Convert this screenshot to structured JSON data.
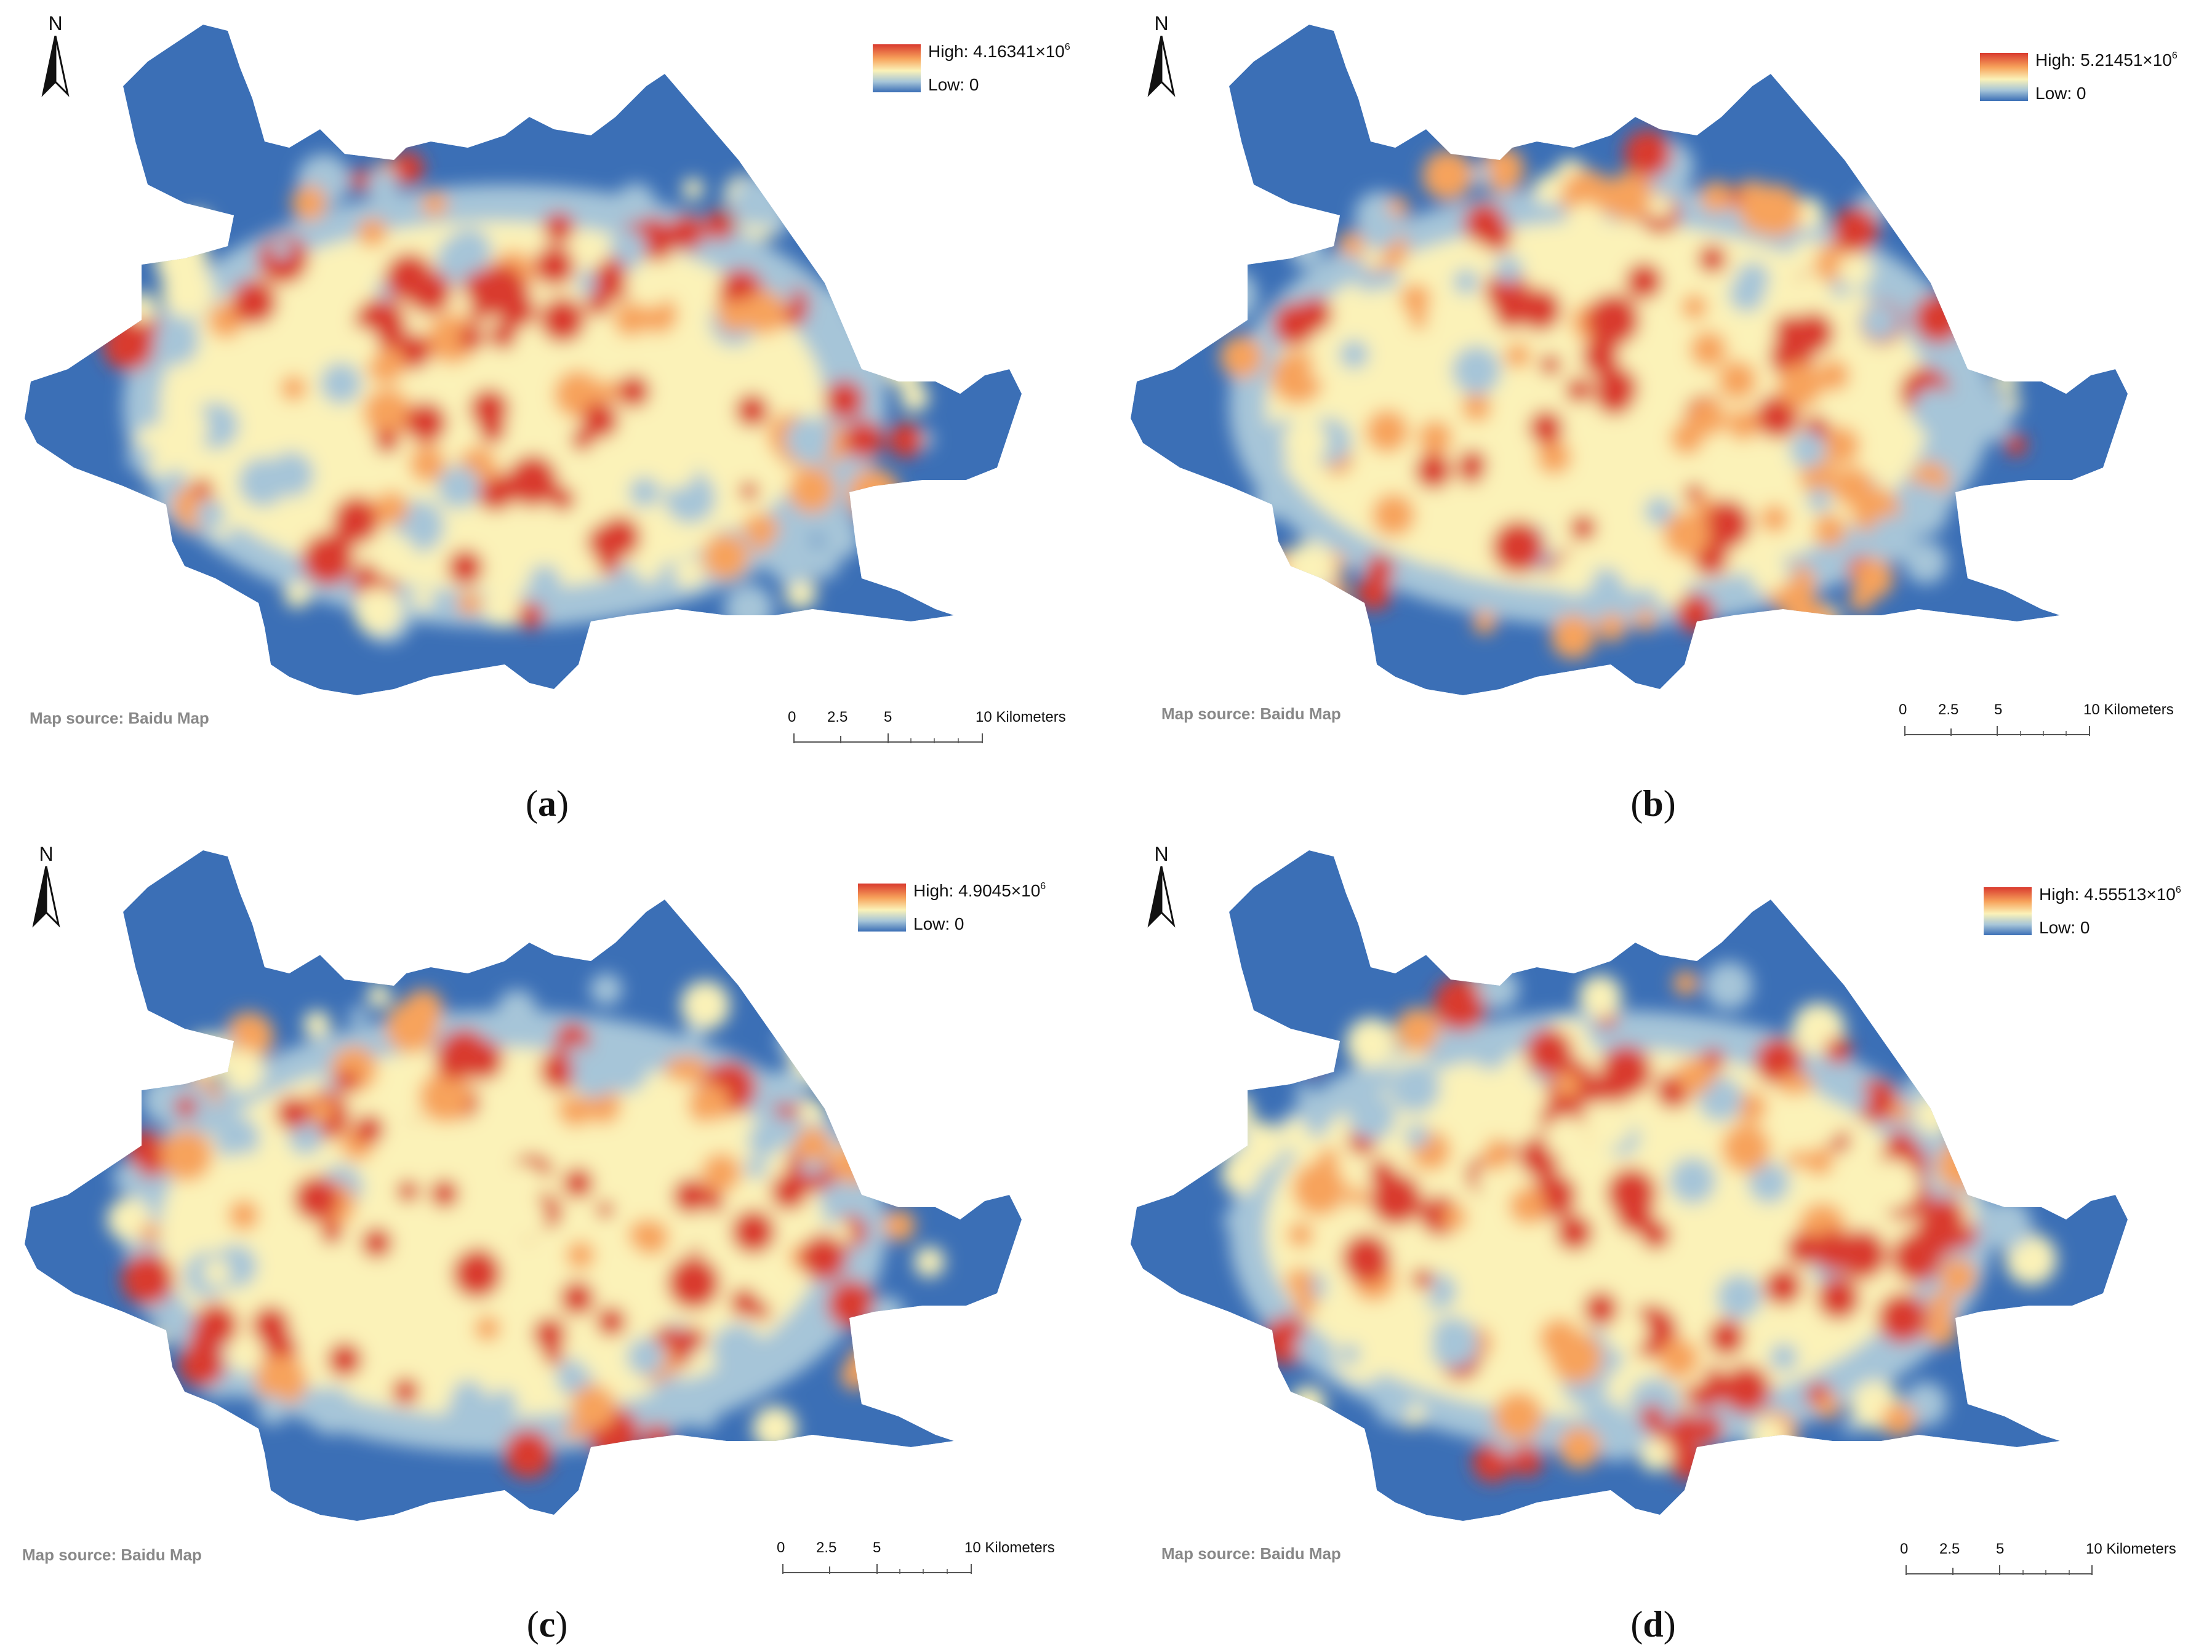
{
  "panels": [
    {
      "id": "a",
      "caption_letter": "a",
      "legend": {
        "high_label": "High: 4.16341×10",
        "high_exp": "6",
        "low_label": "Low: 0"
      },
      "source": "Map source: Baidu Map",
      "scale": {
        "labels": [
          "0",
          "2.5",
          "5",
          "10 Kilometers"
        ]
      },
      "north": "N",
      "hotspot_seed": 11
    },
    {
      "id": "b",
      "caption_letter": "b",
      "legend": {
        "high_label": "High: 5.21451×10",
        "high_exp": "6",
        "low_label": "Low: 0"
      },
      "source": "Map source: Baidu Map",
      "scale": {
        "labels": [
          "0",
          "2.5",
          "5",
          "10 Kilometers"
        ]
      },
      "north": "N",
      "hotspot_seed": 23
    },
    {
      "id": "c",
      "caption_letter": "c",
      "legend": {
        "high_label": "High: 4.9045×10",
        "high_exp": "6",
        "low_label": "Low: 0"
      },
      "source": "Map source: Baidu Map",
      "scale": {
        "labels": [
          "0",
          "2.5",
          "5",
          "10 Kilometers"
        ]
      },
      "north": "N",
      "hotspot_seed": 37
    },
    {
      "id": "d",
      "caption_letter": "d",
      "legend": {
        "high_label": "High: 4.55513×10",
        "high_exp": "6",
        "low_label": "Low: 0"
      },
      "source": "Map source: Baidu Map",
      "scale": {
        "labels": [
          "0",
          "2.5",
          "5",
          "10 Kilometers"
        ]
      },
      "north": "N",
      "hotspot_seed": 53
    }
  ],
  "colors": {
    "low": "#3b6fb6",
    "mid_low": "#a6c5d8",
    "mid": "#fbf2b8",
    "mid_high": "#f7a35c",
    "high": "#d93a2e"
  },
  "map_type": "kernel-density-heatmap",
  "icons": {
    "north_arrow": "north-arrow-icon"
  }
}
